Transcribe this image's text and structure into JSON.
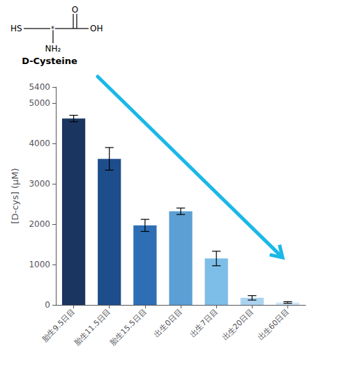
{
  "chart_data": {
    "type": "bar",
    "categories": [
      "胎生9.5日目",
      "胎生11.5日目",
      "胎生15.5日目",
      "出生0日目",
      "出生7日目",
      "出生20日目",
      "出生60日目"
    ],
    "values": [
      4620,
      3620,
      1970,
      2320,
      1150,
      175,
      60
    ],
    "errors": [
      80,
      280,
      150,
      80,
      180,
      55,
      20
    ],
    "colors": [
      "#1a3560",
      "#1e4d8c",
      "#2e6eb5",
      "#5b9fd4",
      "#7dbee8",
      "#aad3f0",
      "#cde6f8"
    ],
    "ylabel": "[D-cys] (μM)",
    "ylim": [
      0,
      5400
    ],
    "yticks": [
      0,
      1000,
      2000,
      3000,
      4000,
      5000
    ],
    "grid": false,
    "annotations": [
      {
        "text": "HS"
      },
      {
        "text": "*"
      },
      {
        "text": "O"
      },
      {
        "text": "OH"
      },
      {
        "text": "NH₂"
      },
      {
        "text": "D-Cysteine"
      },
      {
        "type": "arrow",
        "color": "#1ab8e8"
      }
    ]
  }
}
